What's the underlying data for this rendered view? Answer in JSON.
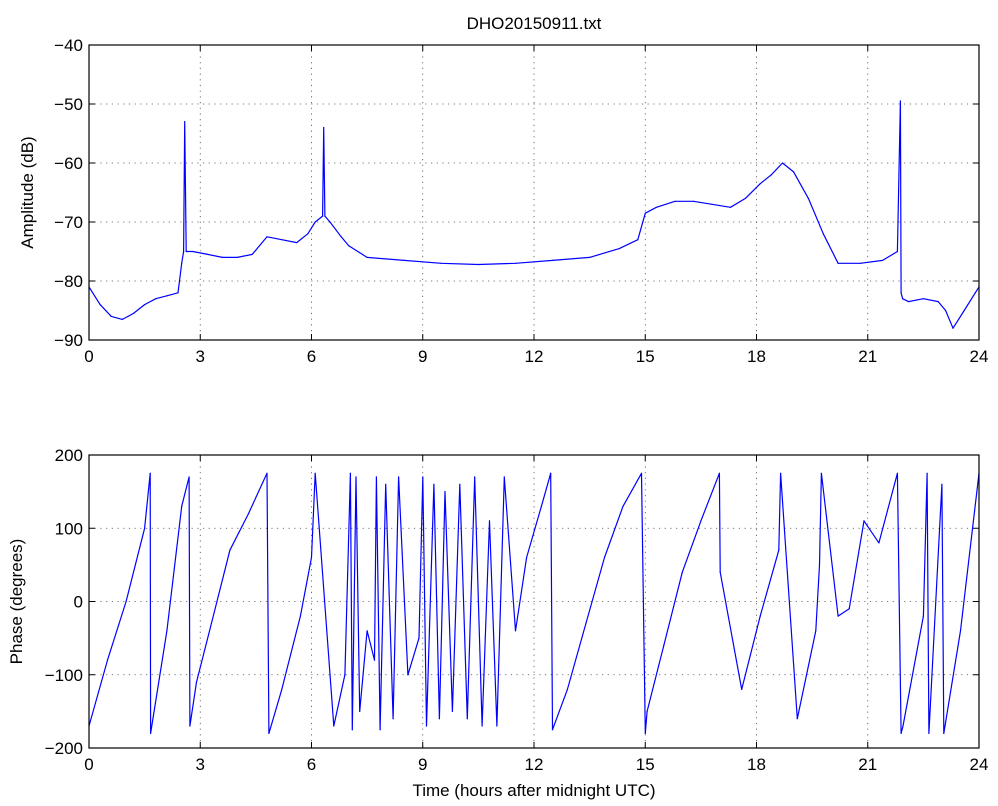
{
  "chart_data": [
    {
      "type": "line",
      "title": "DHO20150911.txt",
      "xlabel": "",
      "ylabel": "Amplitude (dB)",
      "xlim": [
        0,
        24
      ],
      "ylim": [
        -90,
        -40
      ],
      "xticks": [
        "0",
        "3",
        "6",
        "9",
        "12",
        "15",
        "18",
        "21",
        "24"
      ],
      "yticks": [
        "−40",
        "−50",
        "−60",
        "−70",
        "−80",
        "−90"
      ],
      "grid": true,
      "series": [
        {
          "color": "#0000ff",
          "x": [
            0,
            0.3,
            0.6,
            0.9,
            1.2,
            1.5,
            1.8,
            2.1,
            2.4,
            2.5,
            2.55,
            2.58,
            2.62,
            2.8,
            3.2,
            3.6,
            4.0,
            4.4,
            4.8,
            5.2,
            5.6,
            5.9,
            6.1,
            6.3,
            6.33,
            6.36,
            6.5,
            6.8,
            7.0,
            7.5,
            8.5,
            9.5,
            10.5,
            11.5,
            12.5,
            13.5,
            14.3,
            14.8,
            15.0,
            15.3,
            15.8,
            16.3,
            16.8,
            17.3,
            17.7,
            18.1,
            18.4,
            18.7,
            19.0,
            19.4,
            19.8,
            20.2,
            20.8,
            21.4,
            21.8,
            21.88,
            21.9,
            21.94,
            22.1,
            22.5,
            22.9,
            23.1,
            23.3,
            23.6,
            23.9,
            24
          ],
          "y": [
            -81,
            -84,
            -86,
            -86.5,
            -85.5,
            -84,
            -83,
            -82.5,
            -82,
            -77,
            -75,
            -53,
            -75,
            -75,
            -75.5,
            -76,
            -76,
            -75.5,
            -72.5,
            -73,
            -73.5,
            -72,
            -70,
            -69,
            -54,
            -69,
            -70,
            -72.5,
            -74,
            -76,
            -76.5,
            -77,
            -77.2,
            -77,
            -76.5,
            -76,
            -74.5,
            -73,
            -68.5,
            -67.5,
            -66.5,
            -66.5,
            -67,
            -67.5,
            -66,
            -63.5,
            -62,
            -60,
            -61.5,
            -66,
            -72,
            -77,
            -77,
            -76.5,
            -75,
            -49.5,
            -82,
            -83,
            -83.5,
            -83,
            -83.5,
            -85,
            -88,
            -85,
            -82,
            -81
          ]
        }
      ]
    },
    {
      "type": "line",
      "title": "",
      "xlabel": "Time (hours after midnight UTC)",
      "ylabel": "Phase (degrees)",
      "xlim": [
        0,
        24
      ],
      "ylim": [
        -200,
        200
      ],
      "xticks": [
        "0",
        "3",
        "6",
        "9",
        "12",
        "15",
        "18",
        "21",
        "24"
      ],
      "yticks": [
        "200",
        "100",
        "0",
        "−100",
        "−200"
      ],
      "grid": true,
      "series": [
        {
          "color": "#0000ff",
          "x": [
            0,
            0.5,
            1.0,
            1.5,
            1.65,
            1.66,
            2.1,
            2.5,
            2.7,
            2.72,
            2.9,
            3.3,
            3.8,
            4.3,
            4.8,
            4.85,
            5.2,
            5.7,
            6.0,
            6.1,
            6.6,
            6.9,
            7.05,
            7.1,
            7.2,
            7.3,
            7.5,
            7.7,
            7.75,
            7.85,
            8.0,
            8.2,
            8.35,
            8.6,
            8.9,
            9.0,
            9.1,
            9.3,
            9.45,
            9.6,
            9.8,
            10.0,
            10.2,
            10.4,
            10.6,
            10.8,
            11.0,
            11.2,
            11.5,
            11.8,
            12.2,
            12.45,
            12.5,
            12.9,
            13.4,
            13.9,
            14.4,
            14.9,
            15.0,
            15.05,
            15.5,
            16.0,
            16.5,
            17.0,
            17.02,
            17.6,
            18.1,
            18.6,
            18.65,
            19.1,
            19.6,
            19.7,
            19.75,
            20.2,
            20.5,
            20.9,
            21.3,
            21.8,
            21.9,
            21.95,
            22.5,
            22.6,
            22.65,
            23.0,
            23.05,
            23.5,
            24
          ],
          "y": [
            -170,
            -80,
            0,
            100,
            175,
            -180,
            -40,
            130,
            170,
            -170,
            -110,
            -30,
            70,
            120,
            175,
            -180,
            -120,
            -20,
            60,
            175,
            -170,
            -100,
            175,
            -175,
            170,
            -150,
            -40,
            -80,
            170,
            -175,
            160,
            -160,
            170,
            -100,
            -50,
            170,
            -170,
            160,
            -160,
            150,
            -150,
            160,
            -160,
            170,
            -170,
            110,
            -170,
            170,
            -40,
            60,
            130,
            175,
            -175,
            -120,
            -30,
            60,
            130,
            175,
            -180,
            -150,
            -60,
            40,
            110,
            175,
            40,
            -120,
            -20,
            70,
            175,
            -160,
            -40,
            50,
            175,
            -20,
            -10,
            110,
            80,
            175,
            -180,
            -170,
            -20,
            175,
            -180,
            160,
            -180,
            -40,
            175
          ]
        }
      ]
    }
  ]
}
